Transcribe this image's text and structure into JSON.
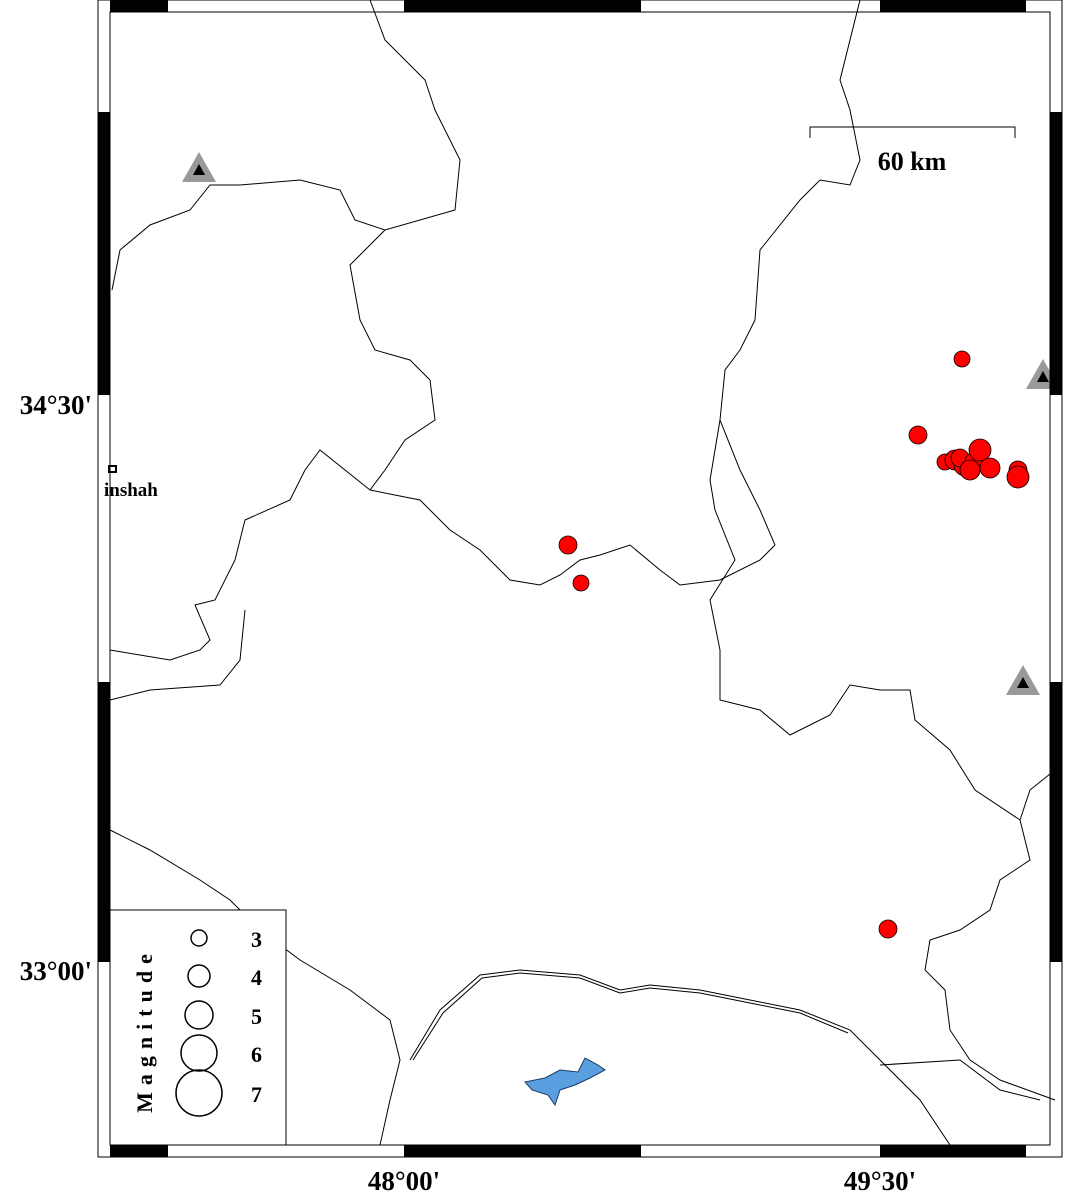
{
  "axes": {
    "left": [
      "34°30'",
      "33°00'"
    ],
    "bottom": [
      "48°00'",
      "49°30'"
    ]
  },
  "scale_bar": "60 km",
  "places": [
    "inshah"
  ],
  "legend": {
    "title": "Magnitude",
    "labels": [
      3,
      4,
      5,
      6,
      7
    ]
  }
}
